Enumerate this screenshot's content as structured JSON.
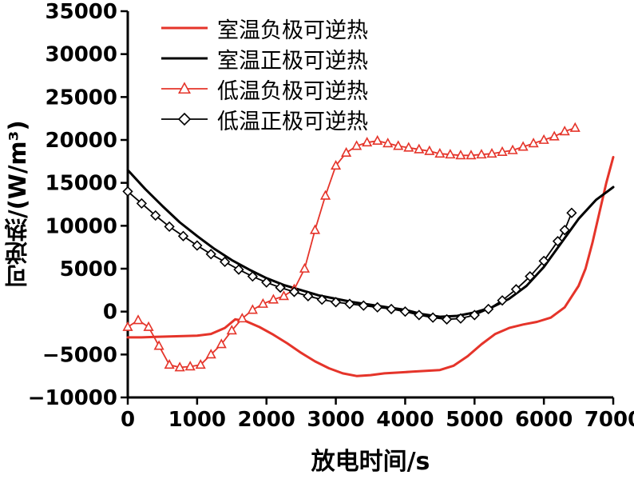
{
  "chart_data": {
    "type": "line",
    "title": "",
    "xlabel": "放电时间/s",
    "ylabel": "可逆热/(W/m³)",
    "xlim": [
      0,
      7000
    ],
    "ylim": [
      -10000,
      35000
    ],
    "x_ticks": [
      0,
      1000,
      2000,
      3000,
      4000,
      5000,
      6000,
      7000
    ],
    "y_ticks": [
      -10000,
      -5000,
      0,
      5000,
      10000,
      15000,
      20000,
      25000,
      30000,
      35000
    ],
    "grid": false,
    "legend_position": "top-left",
    "colors": {
      "red": "#e5342a",
      "black": "#000000"
    },
    "series": [
      {
        "name": "室温负极可逆热",
        "color": "#e5342a",
        "marker": "none",
        "line_width": 3,
        "x": [
          0,
          200,
          400,
          600,
          800,
          1000,
          1200,
          1400,
          1550,
          1700,
          1900,
          2100,
          2300,
          2500,
          2700,
          2900,
          3100,
          3300,
          3500,
          3700,
          3900,
          4100,
          4300,
          4500,
          4700,
          4900,
          5100,
          5300,
          5500,
          5700,
          5900,
          6100,
          6300,
          6500,
          6600,
          6700,
          6800,
          6900,
          7000
        ],
        "y": [
          -3000,
          -3000,
          -2950,
          -2900,
          -2850,
          -2800,
          -2600,
          -1900,
          -900,
          -1100,
          -1800,
          -2700,
          -3700,
          -4800,
          -5800,
          -6600,
          -7200,
          -7500,
          -7400,
          -7200,
          -7100,
          -7000,
          -6900,
          -6800,
          -6300,
          -5200,
          -3800,
          -2600,
          -1900,
          -1500,
          -1200,
          -700,
          500,
          3000,
          5000,
          8000,
          11500,
          15000,
          18000
        ]
      },
      {
        "name": "室温正极可逆热",
        "color": "#000000",
        "marker": "none",
        "line_width": 3,
        "x": [
          0,
          250,
          500,
          750,
          1000,
          1250,
          1500,
          1750,
          2000,
          2250,
          2500,
          2750,
          3000,
          3250,
          3500,
          3750,
          4000,
          4250,
          4500,
          4750,
          5000,
          5250,
          5500,
          5750,
          6000,
          6250,
          6500,
          6750,
          7000
        ],
        "y": [
          16500,
          14300,
          12300,
          10400,
          8800,
          7300,
          6000,
          4900,
          3900,
          3100,
          2500,
          1900,
          1500,
          1100,
          800,
          500,
          200,
          -300,
          -600,
          -500,
          -100,
          500,
          1500,
          3000,
          5200,
          8000,
          10800,
          13000,
          14500
        ]
      },
      {
        "name": "低温负极可逆热",
        "color": "#e5342a",
        "marker": "triangle",
        "line_width": 1.8,
        "x": [
          0,
          150,
          300,
          450,
          600,
          750,
          900,
          1050,
          1200,
          1350,
          1500,
          1650,
          1800,
          1950,
          2100,
          2250,
          2400,
          2550,
          2700,
          2850,
          3000,
          3150,
          3300,
          3450,
          3600,
          3750,
          3900,
          4050,
          4200,
          4350,
          4500,
          4650,
          4800,
          4950,
          5100,
          5250,
          5400,
          5550,
          5700,
          5850,
          6000,
          6150,
          6300,
          6450
        ],
        "y": [
          -1800,
          -1000,
          -1800,
          -4000,
          -6200,
          -6500,
          -6400,
          -6200,
          -5000,
          -3800,
          -2200,
          -800,
          200,
          900,
          1400,
          1800,
          2600,
          5000,
          9500,
          13500,
          17000,
          18500,
          19300,
          19700,
          19900,
          19600,
          19300,
          19100,
          18900,
          18700,
          18400,
          18300,
          18200,
          18200,
          18300,
          18400,
          18600,
          18800,
          19200,
          19600,
          20000,
          20400,
          21000,
          21400
        ]
      },
      {
        "name": "低温正极可逆热",
        "color": "#000000",
        "marker": "diamond",
        "line_width": 1.8,
        "x": [
          0,
          200,
          400,
          600,
          800,
          1000,
          1200,
          1400,
          1600,
          1800,
          2000,
          2200,
          2400,
          2600,
          2800,
          3000,
          3200,
          3400,
          3600,
          3800,
          4000,
          4200,
          4400,
          4600,
          4800,
          5000,
          5200,
          5400,
          5600,
          5800,
          6000,
          6200,
          6300,
          6400
        ],
        "y": [
          14000,
          12600,
          11200,
          9900,
          8800,
          7700,
          6700,
          5800,
          4900,
          4100,
          3400,
          2800,
          2300,
          1800,
          1400,
          1100,
          900,
          700,
          500,
          300,
          0,
          -400,
          -700,
          -900,
          -800,
          -400,
          300,
          1300,
          2600,
          4100,
          5900,
          8200,
          9500,
          11500
        ]
      }
    ]
  }
}
